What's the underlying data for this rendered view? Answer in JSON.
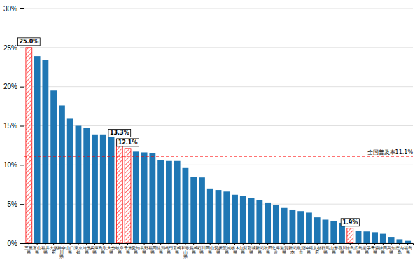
{
  "chart_data": {
    "type": "bar",
    "categories": [
      "三重\n県",
      "富山\n県",
      "福井\n県",
      "大阪\n府",
      "神奈\n川\n県",
      "山口\n県",
      "東京\n都",
      "埼玉\n県",
      "兵庫\n県",
      "鳥取\n県",
      "大分\n県",
      "岐阜\n県",
      "千葉\n県",
      "愛知\n県",
      "長野\n県",
      "福岡\n県",
      "佐賀\n県",
      "鳴門\n県",
      "宮崎\n県",
      "和歌\n山\n県",
      "長崎\n県",
      "石川\n県",
      "岡山\n県",
      "愛媛\n県",
      "茨城\n県",
      "栃木\n県",
      "山梨\n県",
      "宮城\n県",
      "新潟\n県",
      "秋田\n県",
      "北海\n道",
      "滋賀\n県",
      "新潟\n本",
      "魚沼\n市",
      "沖縄\n県",
      "京都\n府",
      "群馬\n県",
      "山形\n県",
      "香川\n県",
      "徳島\n県",
      "広島\n県",
      "岩手\n県",
      "青森\n県",
      "静岡\n県",
      "高知\n県",
      "庄内\n島",
      "福島\n県"
    ],
    "values": [
      25.0,
      23.9,
      23.4,
      19.5,
      17.6,
      15.9,
      15.0,
      14.7,
      13.9,
      13.9,
      13.6,
      13.3,
      12.1,
      11.7,
      11.6,
      11.5,
      10.6,
      10.5,
      10.5,
      9.6,
      8.5,
      8.4,
      7.0,
      6.8,
      6.6,
      6.2,
      6.0,
      5.8,
      5.5,
      5.2,
      4.9,
      4.5,
      4.3,
      4.1,
      3.9,
      3.3,
      3.0,
      2.8,
      2.6,
      1.9,
      1.6,
      1.5,
      1.4,
      1.2,
      0.8,
      0.5,
      0.3
    ],
    "colors": [
      "#FF0000",
      "#1F77B4",
      "#1F77B4",
      "#1F77B4",
      "#1F77B4",
      "#1F77B4",
      "#1F77B4",
      "#1F77B4",
      "#1F77B4",
      "#1F77B4",
      "#1F77B4",
      "#FF0000",
      "#FF0000",
      "#1F77B4",
      "#1F77B4",
      "#1F77B4",
      "#1F77B4",
      "#1F77B4",
      "#1F77B4",
      "#1F77B4",
      "#1F77B4",
      "#1F77B4",
      "#1F77B4",
      "#1F77B4",
      "#1F77B4",
      "#1F77B4",
      "#1F77B4",
      "#1F77B4",
      "#1F77B4",
      "#1F77B4",
      "#1F77B4",
      "#1F77B4",
      "#1F77B4",
      "#1F77B4",
      "#1F77B4",
      "#1F77B4",
      "#1F77B4",
      "#1F77B4",
      "#1F77B4",
      "#FF0000",
      "#1F77B4",
      "#1F77B4",
      "#1F77B4",
      "#1F77B4",
      "#1F77B4",
      "#1F77B4",
      "#1F77B4"
    ],
    "ylim": [
      0,
      30
    ],
    "yticks": [
      {
        "value": 0,
        "label": "0%"
      },
      {
        "value": 5,
        "label": "5%"
      },
      {
        "value": 10,
        "label": "10%"
      },
      {
        "value": 15,
        "label": "15%"
      },
      {
        "value": 20,
        "label": "20%"
      },
      {
        "value": 25,
        "label": "25%"
      },
      {
        "value": 30,
        "label": "30%"
      }
    ],
    "grid": true,
    "reference_lines": [
      {
        "value": 11.1,
        "label": "全国普及率11.1%",
        "color": "#FF0000"
      }
    ],
    "annotations": [
      {
        "category": "三重\n県",
        "value": 25.0,
        "text": "25.0%"
      },
      {
        "category": "岐阜\n県",
        "value": 13.3,
        "text": "13.3%"
      },
      {
        "category": "千葉\n県",
        "value": 12.1,
        "text": "12.1%"
      },
      {
        "category": "徳島\n県",
        "value": 1.9,
        "text": "1.9%"
      }
    ]
  }
}
